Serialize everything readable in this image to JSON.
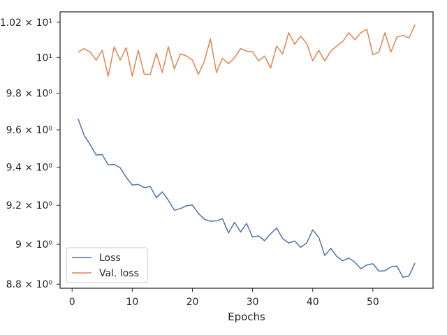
{
  "chart_data": {
    "type": "line",
    "xlabel": "Epochs",
    "ylabel": "",
    "title": "",
    "yscale": "log",
    "xlim": [
      -2,
      60
    ],
    "ylim": [
      8.78,
      10.26
    ],
    "x_ticks": [
      0,
      10,
      20,
      30,
      40,
      50
    ],
    "y_ticks": [
      {
        "value": 8.8,
        "label": "8.8 × 10⁰"
      },
      {
        "value": 9.0,
        "label": "9 × 10⁰"
      },
      {
        "value": 9.2,
        "label": "9.2 × 10⁰"
      },
      {
        "value": 9.4,
        "label": "9.4 × 10⁰"
      },
      {
        "value": 9.6,
        "label": "9.6 × 10⁰"
      },
      {
        "value": 9.8,
        "label": "9.8 × 10⁰"
      },
      {
        "value": 10.0,
        "label": "10¹"
      },
      {
        "value": 10.2,
        "label": "1.02 × 10¹"
      }
    ],
    "grid": false,
    "legend_position": "lower-left",
    "series": [
      {
        "name": "Loss",
        "color": "#4c72b0",
        "x": [
          1,
          2,
          3,
          4,
          5,
          6,
          7,
          8,
          9,
          10,
          11,
          12,
          13,
          14,
          15,
          16,
          17,
          18,
          19,
          20,
          21,
          22,
          23,
          24,
          25,
          26,
          27,
          28,
          29,
          30,
          31,
          32,
          33,
          34,
          35,
          36,
          37,
          38,
          39,
          40,
          41,
          42,
          43,
          44,
          45,
          46,
          47,
          48,
          49,
          50,
          51,
          52,
          53,
          54,
          55,
          56,
          57
        ],
        "y": [
          9.66,
          9.57,
          9.52,
          9.465,
          9.467,
          9.412,
          9.415,
          9.397,
          9.346,
          9.306,
          9.309,
          9.292,
          9.298,
          9.24,
          9.27,
          9.227,
          9.175,
          9.183,
          9.198,
          9.202,
          9.158,
          9.128,
          9.118,
          9.12,
          9.131,
          9.058,
          9.112,
          9.063,
          9.107,
          9.037,
          9.043,
          9.018,
          9.054,
          9.083,
          9.029,
          9.007,
          9.017,
          8.985,
          9.006,
          9.074,
          9.035,
          8.943,
          8.98,
          8.939,
          8.917,
          8.931,
          8.91,
          8.877,
          8.896,
          8.902,
          8.865,
          8.867,
          8.886,
          8.891,
          8.834,
          8.841,
          8.905
        ]
      },
      {
        "name": "Val. loss",
        "color": "#dd8452",
        "x": [
          1,
          2,
          3,
          4,
          5,
          6,
          7,
          8,
          9,
          10,
          11,
          12,
          13,
          14,
          15,
          16,
          17,
          18,
          19,
          20,
          21,
          22,
          23,
          24,
          25,
          26,
          27,
          28,
          29,
          30,
          31,
          32,
          33,
          34,
          35,
          36,
          37,
          38,
          39,
          40,
          41,
          42,
          43,
          44,
          45,
          46,
          47,
          48,
          49,
          50,
          51,
          52,
          53,
          54,
          55,
          56,
          57
        ],
        "y": [
          10.03,
          10.05,
          10.03,
          9.985,
          10.04,
          9.895,
          10.06,
          9.985,
          10.055,
          9.895,
          10.04,
          9.905,
          9.905,
          10.025,
          9.915,
          10.06,
          9.935,
          10.02,
          10.008,
          9.985,
          9.905,
          9.98,
          10.105,
          9.915,
          9.995,
          9.965,
          9.998,
          10.05,
          10.035,
          10.032,
          9.98,
          10.008,
          9.94,
          10.065,
          10.019,
          10.14,
          10.075,
          10.12,
          10.08,
          9.98,
          10.04,
          9.98,
          10.035,
          10.065,
          10.09,
          10.14,
          10.1,
          10.14,
          10.16,
          10.015,
          10.03,
          10.14,
          10.03,
          10.115,
          10.125,
          10.11,
          10.186
        ]
      }
    ]
  }
}
